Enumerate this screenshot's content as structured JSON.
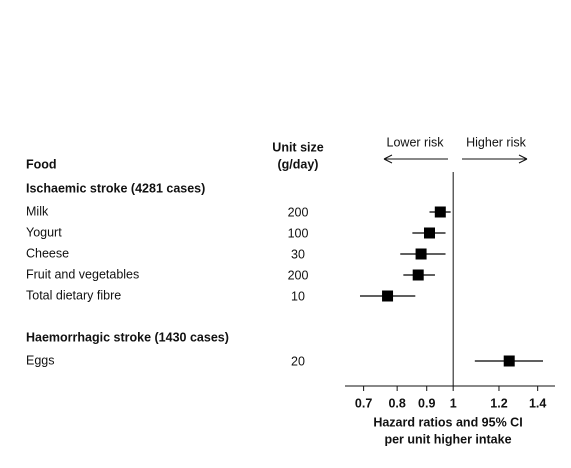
{
  "chart_data": {
    "type": "forest",
    "column_header": "Food",
    "unit_header": [
      "Unit size",
      "(g/day)"
    ],
    "groups": [
      {
        "name": "Ischaemic stroke (4281 cases)",
        "categories": [
          "Milk",
          "Yogurt",
          "Cheese",
          "Fruit and vegetables",
          "Total dietary fibre"
        ],
        "unit_sizes": [
          200,
          100,
          30,
          200,
          10
        ],
        "values": [
          0.95,
          0.91,
          0.88,
          0.87,
          0.77
        ],
        "ci_lower": [
          0.91,
          0.85,
          0.81,
          0.82,
          0.69
        ],
        "ci_upper": [
          0.99,
          0.97,
          0.97,
          0.93,
          0.86
        ]
      },
      {
        "name": "Haemorrhagic stroke (1430 cases)",
        "categories": [
          "Eggs"
        ],
        "unit_sizes": [
          20
        ],
        "values": [
          1.25
        ],
        "ci_lower": [
          1.09
        ],
        "ci_upper": [
          1.43
        ]
      }
    ],
    "lower_label": "Lower risk",
    "higher_label": "Higher risk",
    "reference": 1,
    "xlabel": [
      "Hazard ratios and 95% CI",
      "per unit higher intake"
    ],
    "xscale": "log",
    "xlim": [
      0.65,
      1.5
    ],
    "xticks": [
      0.7,
      0.8,
      0.9,
      1,
      1.2,
      1.4
    ],
    "color": "#000000"
  }
}
